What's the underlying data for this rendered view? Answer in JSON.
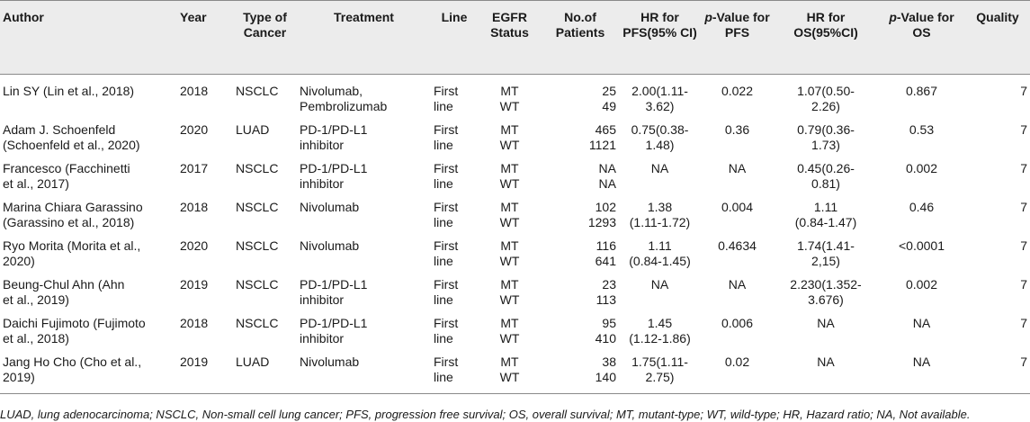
{
  "headers": {
    "author": "Author",
    "year": "Year",
    "type_of_cancer": "Type of Cancer",
    "treatment": "Treatment",
    "line": "Line",
    "egfr_status": "EGFR Status",
    "no_of_patients": "No.of Patients",
    "hr_pfs": "HR for PFS(95% CI)",
    "p_value_pfs_prefix": "p",
    "p_value_pfs_rest": "-Value for PFS",
    "hr_os": "HR for OS(95%CI)",
    "p_value_os_prefix": "p",
    "p_value_os_rest": "-Value for OS",
    "quality": "Quality"
  },
  "rows": [
    {
      "author": [
        "Lin SY (Lin et al., 2018)"
      ],
      "year": "2018",
      "cancer": "NSCLC",
      "treatment": [
        "Nivolumab,",
        "Pembrolizumab"
      ],
      "line": [
        "First",
        "line"
      ],
      "egfr": [
        "MT",
        "WT"
      ],
      "patients": [
        "25",
        "49"
      ],
      "hr_pfs": [
        "2.00(1.11-",
        "3.62)"
      ],
      "p_pfs": "0.022",
      "hr_os": [
        "1.07(0.50-",
        "2.26)"
      ],
      "p_os": "0.867",
      "quality": "7"
    },
    {
      "author": [
        "Adam J. Schoenfeld",
        "(Schoenfeld et al., 2020)"
      ],
      "year": "2020",
      "cancer": "LUAD",
      "treatment": [
        "PD-1/PD-L1",
        "inhibitor"
      ],
      "line": [
        "First",
        "line"
      ],
      "egfr": [
        "MT",
        "WT"
      ],
      "patients": [
        "465",
        "1121"
      ],
      "hr_pfs": [
        "0.75(0.38-",
        "1.48)"
      ],
      "p_pfs": "0.36",
      "hr_os": [
        "0.79(0.36-",
        "1.73)"
      ],
      "p_os": "0.53",
      "quality": "7"
    },
    {
      "author": [
        "Francesco (Facchinetti",
        "et al., 2017)"
      ],
      "year": "2017",
      "cancer": "NSCLC",
      "treatment": [
        "PD-1/PD-L1",
        "inhibitor"
      ],
      "line": [
        "First",
        "line"
      ],
      "egfr": [
        "MT",
        "WT"
      ],
      "patients": [
        "NA",
        "NA"
      ],
      "hr_pfs": [
        "NA"
      ],
      "p_pfs": "NA",
      "hr_os": [
        "0.45(0.26-",
        "0.81)"
      ],
      "p_os": "0.002",
      "quality": "7"
    },
    {
      "author": [
        "Marina Chiara Garassino",
        "(Garassino et al., 2018)"
      ],
      "year": "2018",
      "cancer": "NSCLC",
      "treatment": [
        "Nivolumab"
      ],
      "line": [
        "First",
        "line"
      ],
      "egfr": [
        "MT",
        "WT"
      ],
      "patients": [
        "102",
        "1293"
      ],
      "hr_pfs": [
        "1.38",
        "(1.11-1.72)"
      ],
      "p_pfs": "0.004",
      "hr_os": [
        "1.11",
        "(0.84-1.47)"
      ],
      "p_os": "0.46",
      "quality": "7"
    },
    {
      "author": [
        "Ryo Morita (Morita et al.,",
        "2020)"
      ],
      "year": "2020",
      "cancer": "NSCLC",
      "treatment": [
        "Nivolumab"
      ],
      "line": [
        "First",
        "line"
      ],
      "egfr": [
        "MT",
        "WT"
      ],
      "patients": [
        "116",
        "641"
      ],
      "hr_pfs": [
        "1.11",
        "(0.84-1.45)"
      ],
      "p_pfs": "0.4634",
      "hr_os": [
        "1.74(1.41-",
        "2,15)"
      ],
      "p_os": "<0.0001",
      "quality": "7"
    },
    {
      "author": [
        "Beung-Chul Ahn (Ahn",
        "et al., 2019)"
      ],
      "year": "2019",
      "cancer": "NSCLC",
      "treatment": [
        "PD-1/PD-L1",
        "inhibitor"
      ],
      "line": [
        "First",
        "line"
      ],
      "egfr": [
        "MT",
        "WT"
      ],
      "patients": [
        "23",
        "113"
      ],
      "hr_pfs": [
        "NA"
      ],
      "p_pfs": "NA",
      "hr_os": [
        "2.230(1.352-",
        "3.676)"
      ],
      "p_os": "0.002",
      "quality": "7"
    },
    {
      "author": [
        "Daichi Fujimoto (Fujimoto",
        "et al., 2018)"
      ],
      "year": "2018",
      "cancer": "NSCLC",
      "treatment": [
        "PD-1/PD-L1",
        "inhibitor"
      ],
      "line": [
        "First",
        "line"
      ],
      "egfr": [
        "MT",
        "WT"
      ],
      "patients": [
        "95",
        "410"
      ],
      "hr_pfs": [
        "1.45",
        "(1.12-1.86)"
      ],
      "p_pfs": "0.006",
      "hr_os": [
        "NA"
      ],
      "p_os": "NA",
      "quality": "7"
    },
    {
      "author": [
        "Jang Ho Cho (Cho et al.,",
        "2019)"
      ],
      "year": "2019",
      "cancer": "LUAD",
      "treatment": [
        "Nivolumab"
      ],
      "line": [
        "First",
        "line"
      ],
      "egfr": [
        "MT",
        "WT"
      ],
      "patients": [
        "38",
        "140"
      ],
      "hr_pfs": [
        "1.75(1.11-",
        "2.75)"
      ],
      "p_pfs": "0.02",
      "hr_os": [
        "NA"
      ],
      "p_os": "NA",
      "quality": "7"
    }
  ],
  "footnote": "LUAD, lung adenocarcinoma; NSCLC, Non-small cell lung cancer; PFS, progression free survival; OS, overall survival; MT, mutant-type; WT, wild-type; HR, Hazard ratio; NA, Not available."
}
